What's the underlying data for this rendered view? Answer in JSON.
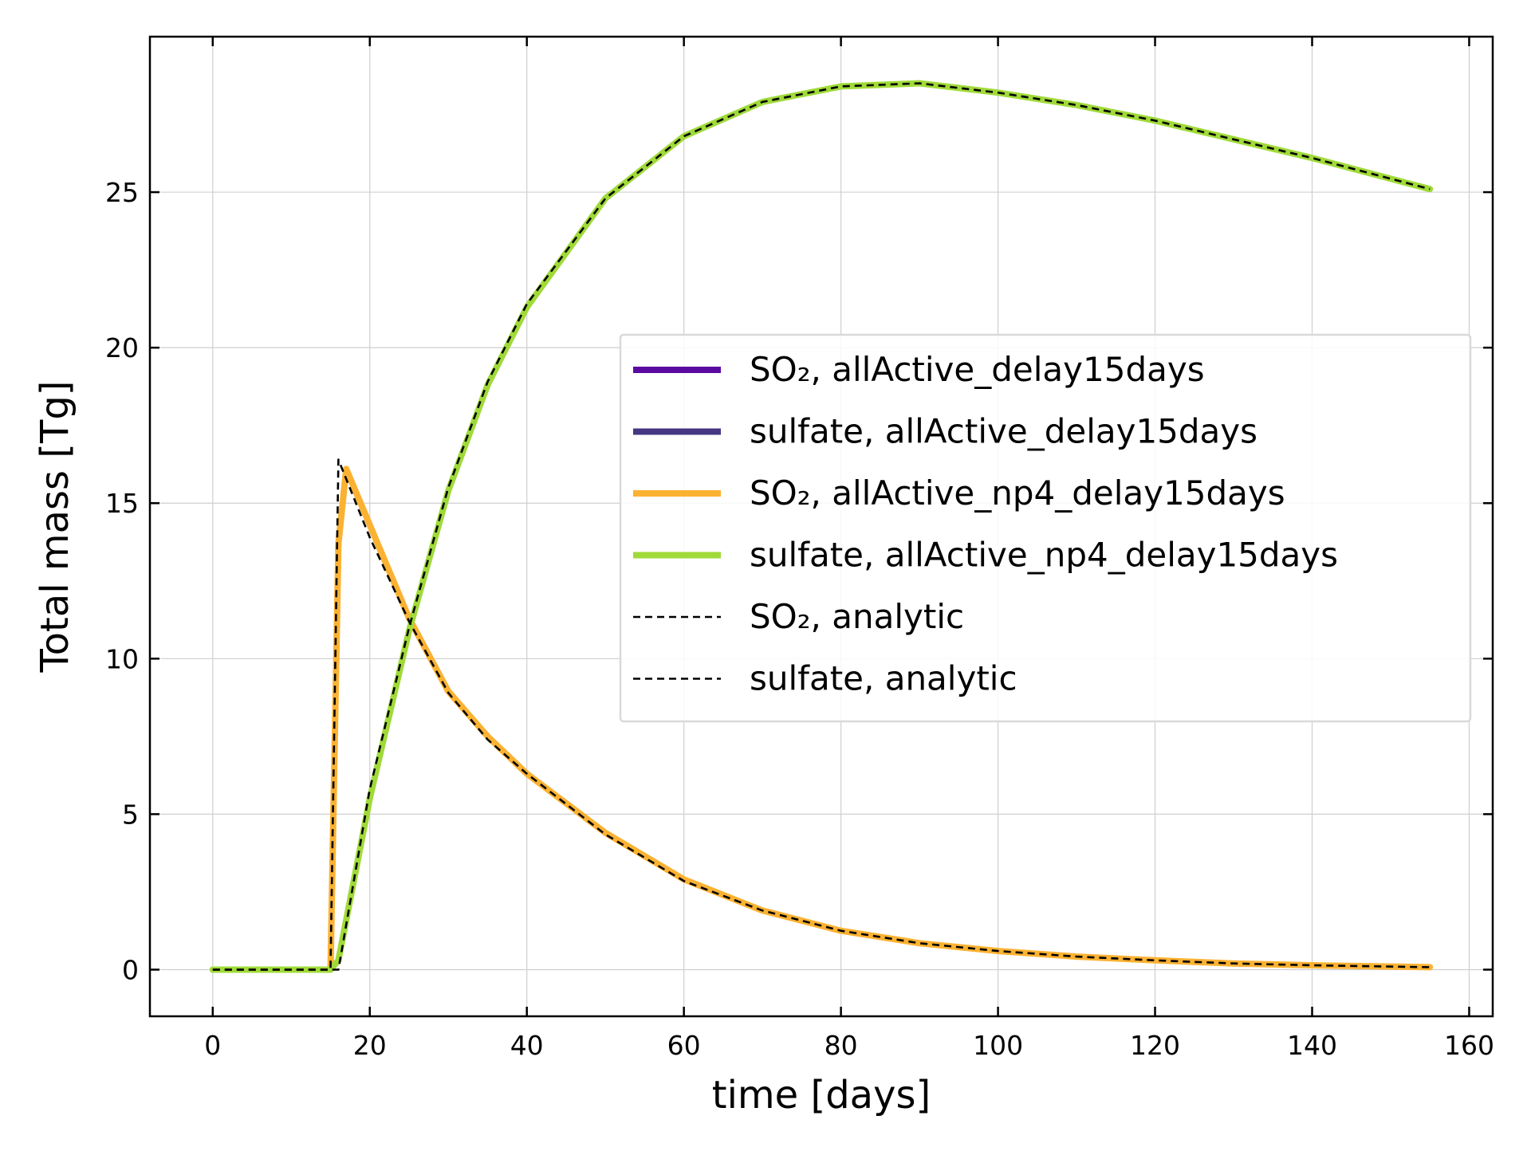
{
  "chart_data": {
    "type": "line",
    "title": "",
    "xlabel": "time [days]",
    "ylabel": "Total mass [Tg]",
    "xlim": [
      -8,
      163
    ],
    "ylim": [
      -1.5,
      30
    ],
    "xticks": [
      0,
      20,
      40,
      60,
      80,
      100,
      120,
      140,
      160
    ],
    "yticks": [
      0,
      5,
      10,
      15,
      20,
      25
    ],
    "grid": true,
    "legend_position": "center-right",
    "series": [
      {
        "key": "so2_allactive",
        "name": "SO₂, allActive_delay15days",
        "color": "#5a0aa0",
        "style": "solid",
        "x": [],
        "y": []
      },
      {
        "key": "sulfate_allactive",
        "name": "sulfate, allActive_delay15days",
        "color": "#453781",
        "style": "solid",
        "x": [],
        "y": []
      },
      {
        "key": "so2_np4",
        "name": "SO₂, allActive_np4_delay15days",
        "color": "#fbb232",
        "style": "solid",
        "x": [
          0,
          5,
          10,
          15,
          16,
          17,
          20,
          25,
          30,
          35,
          40,
          50,
          60,
          70,
          80,
          90,
          100,
          110,
          120,
          130,
          140,
          155
        ],
        "y": [
          0,
          0,
          0,
          0,
          13.7,
          16.1,
          14.3,
          11.3,
          8.95,
          7.5,
          6.3,
          4.4,
          2.9,
          1.9,
          1.25,
          0.85,
          0.6,
          0.42,
          0.3,
          0.2,
          0.14,
          0.08
        ]
      },
      {
        "key": "sulfate_np4",
        "name": "sulfate, allActive_np4_delay15days",
        "color": "#a0da39",
        "style": "solid",
        "x": [
          0,
          5,
          10,
          15,
          16,
          20,
          25,
          30,
          35,
          40,
          50,
          60,
          70,
          80,
          90,
          100,
          110,
          120,
          130,
          140,
          155
        ],
        "y": [
          0,
          0,
          0,
          0,
          0.3,
          5.5,
          10.9,
          15.4,
          18.8,
          21.3,
          24.8,
          26.8,
          27.9,
          28.4,
          28.5,
          28.2,
          27.8,
          27.3,
          26.7,
          26.1,
          25.1
        ]
      },
      {
        "key": "so2_analytic",
        "name": "SO₂, analytic",
        "color": "#000000",
        "style": "dashed",
        "x": [
          0,
          5,
          10,
          15,
          16,
          20,
          25,
          30,
          35,
          40,
          50,
          60,
          70,
          80,
          90,
          100,
          110,
          120,
          130,
          140,
          155
        ],
        "y": [
          0,
          0,
          0,
          0,
          16.4,
          13.9,
          11.2,
          8.9,
          7.4,
          6.3,
          4.35,
          2.85,
          1.9,
          1.25,
          0.85,
          0.6,
          0.42,
          0.3,
          0.2,
          0.14,
          0.08
        ]
      },
      {
        "key": "sulfate_analytic",
        "name": "sulfate, analytic",
        "color": "#000000",
        "style": "dashed",
        "x": [
          0,
          5,
          10,
          15,
          16,
          20,
          25,
          30,
          35,
          40,
          50,
          60,
          70,
          80,
          90,
          100,
          110,
          120,
          130,
          140,
          155
        ],
        "y": [
          0,
          0,
          0,
          0,
          0,
          5.8,
          11.0,
          15.5,
          18.9,
          21.4,
          24.8,
          26.8,
          27.9,
          28.4,
          28.5,
          28.2,
          27.8,
          27.3,
          26.7,
          26.1,
          25.1
        ]
      }
    ]
  }
}
